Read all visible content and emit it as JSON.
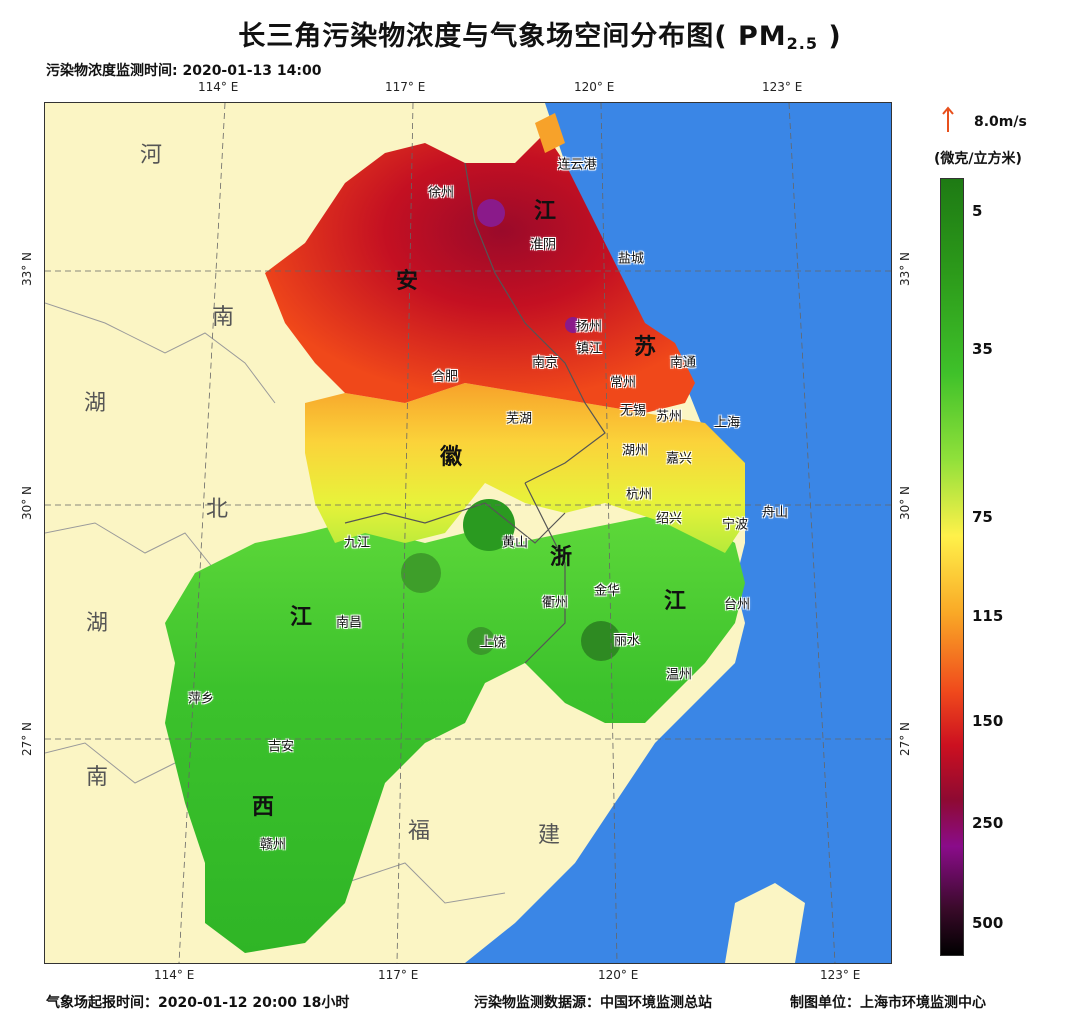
{
  "title": "长三角污染物浓度与气象场空间分布图( PM",
  "title_sub": "2.5",
  "title_close": " )",
  "monitor_time": "污染物浓度监测时间: 2020-01-13 14:00",
  "lon_labels": [
    "114° E",
    "117° E",
    "120° E",
    "123° E"
  ],
  "lat_labels": [
    "33° N",
    "30° N",
    "27° N"
  ],
  "legend": {
    "wind_speed_label": "8.0m/s",
    "unit": "(微克/立方米)",
    "ticks": [
      "5",
      "35",
      "75",
      "115",
      "150",
      "250",
      "500"
    ],
    "colors": {
      "low": "#1e7a14",
      "moderate": "#fff14a",
      "high": "#f04a1c",
      "very_high": "#8a0c8a",
      "extreme": "#000000",
      "sea": "#3a86e6",
      "land_outside": "#fbf5c4",
      "wind_arrow": "#e8501c"
    }
  },
  "cities": [
    "连云港",
    "徐州",
    "淮阴",
    "盐城",
    "扬州",
    "镇江",
    "南京",
    "南通",
    "常州",
    "合肥",
    "无锡",
    "苏州",
    "芜湖",
    "上海",
    "湖州",
    "嘉兴",
    "杭州",
    "绍兴",
    "舟山",
    "宁波",
    "九江",
    "黄山",
    "衢州",
    "金华",
    "台州",
    "南昌",
    "上饶",
    "丽水",
    "温州",
    "萍乡",
    "吉安",
    "赣州"
  ],
  "province_chars": [
    "江",
    "苏",
    "安",
    "徽",
    "浙",
    "江",
    "江",
    "西"
  ],
  "outside_chars": [
    "河",
    "南",
    "湖",
    "北",
    "湖",
    "南",
    "福",
    "建"
  ],
  "footer": {
    "wind_field_time": "气象场起报时间：2020-01-12 20:00 18小时",
    "data_source": "污染物监测数据源：中国环境监测总站",
    "producer": "制图单位：上海市环境监测中心"
  }
}
